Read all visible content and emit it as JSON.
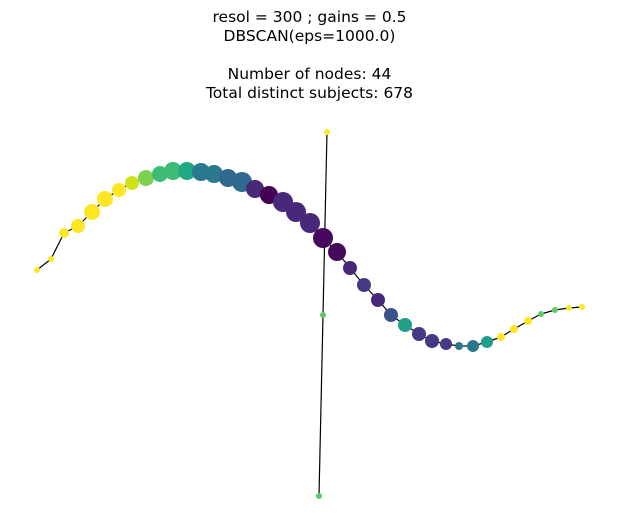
{
  "title": {
    "line1": "resol = 300 ; gains = 0.5",
    "line2": "DBSCAN(eps=1000.0)",
    "line3": "Number of nodes: 44",
    "line4": "Total distinct subjects: 678"
  },
  "colors": {
    "edge": "#000000",
    "yellow": "#fde725",
    "yellow_green": "#d0e11c",
    "light_green": "#7ad151",
    "green": "#5ec962",
    "mid_green": "#3fbc73",
    "teal_green": "#22a884",
    "teal": "#1f9e89",
    "blue_teal": "#2a788e",
    "steel_blue": "#31688e",
    "blue": "#3b528b",
    "indigo": "#443983",
    "violet": "#482878",
    "deep_violet": "#46085c",
    "dark_purple": "#440154"
  },
  "graph": {
    "main_path": [
      {
        "c": "yellow",
        "s": 3
      },
      {
        "c": "yellow",
        "s": 3
      },
      {
        "c": "yellow",
        "s": 5
      },
      {
        "c": "yellow",
        "s": 7
      },
      {
        "c": "yellow",
        "s": 8
      },
      {
        "c": "yellow",
        "s": 8
      },
      {
        "c": "yellow",
        "s": 7
      },
      {
        "c": "yellow_green",
        "s": 7
      },
      {
        "c": "light_green",
        "s": 8
      },
      {
        "c": "mid_green",
        "s": 8
      },
      {
        "c": "mid_green",
        "s": 9
      },
      {
        "c": "teal_green",
        "s": 9
      },
      {
        "c": "blue_teal",
        "s": 9
      },
      {
        "c": "blue_teal",
        "s": 9
      },
      {
        "c": "steel_blue",
        "s": 9
      },
      {
        "c": "steel_blue",
        "s": 10
      },
      {
        "c": "violet",
        "s": 9
      },
      {
        "c": "dark_purple",
        "s": 9
      },
      {
        "c": "violet",
        "s": 10
      },
      {
        "c": "violet",
        "s": 10
      },
      {
        "c": "violet",
        "s": 10
      },
      {
        "c": "deep_violet",
        "s": 10
      },
      {
        "c": "deep_violet",
        "s": 9
      },
      {
        "c": "violet",
        "s": 7
      },
      {
        "c": "indigo",
        "s": 7
      },
      {
        "c": "violet",
        "s": 7
      },
      {
        "c": "blue",
        "s": 7
      },
      {
        "c": "teal",
        "s": 7
      },
      {
        "c": "indigo",
        "s": 7
      },
      {
        "c": "indigo",
        "s": 7
      },
      {
        "c": "indigo",
        "s": 6
      },
      {
        "c": "blue_teal",
        "s": 4
      },
      {
        "c": "blue_teal",
        "s": 6
      },
      {
        "c": "teal",
        "s": 6
      },
      {
        "c": "yellow",
        "s": 4
      },
      {
        "c": "yellow",
        "s": 4
      },
      {
        "c": "yellow",
        "s": 4
      },
      {
        "c": "green",
        "s": 3
      },
      {
        "c": "green",
        "s": 3
      },
      {
        "c": "yellow",
        "s": 3
      },
      {
        "c": "yellow",
        "s": 3
      }
    ],
    "branch": [
      {
        "c": "yellow",
        "s": 3
      },
      {
        "c": "green",
        "s": 3
      },
      {
        "c": "green",
        "s": 3
      }
    ]
  }
}
